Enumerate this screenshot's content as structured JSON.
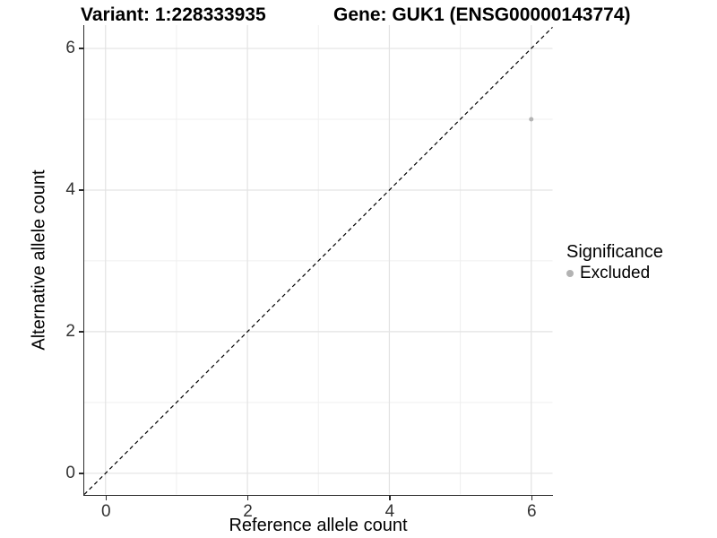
{
  "chart_data": {
    "type": "scatter",
    "title_left": "Variant: 1:228333935",
    "title_right": "Gene: GUK1 (ENSG00000143774)",
    "xlabel": "Reference allele count",
    "ylabel": "Alternative allele count",
    "xlim": [
      -0.3,
      6.3
    ],
    "ylim": [
      -0.3,
      6.33
    ],
    "x_ticks": [
      0,
      2,
      4,
      6
    ],
    "y_ticks": [
      0,
      2,
      4,
      6
    ],
    "x_minor_gridlines": [
      1,
      3,
      5
    ],
    "y_minor_gridlines": [
      1,
      3,
      5
    ],
    "grid": "major and minor gridlines on, white panel background",
    "reference_line": {
      "kind": "identity y=x",
      "linetype": "dashed",
      "color": "#000000"
    },
    "series": [
      {
        "name": "Excluded",
        "color": "#b3b3b3",
        "point_radius": 2.5,
        "points": [
          [
            6,
            5
          ]
        ]
      }
    ],
    "legend": {
      "title": "Significance",
      "position": "right",
      "items": [
        {
          "label": "Excluded",
          "color": "#b3b3b3"
        }
      ]
    },
    "colors": {
      "grid_major": "#e3e3e3",
      "grid_minor": "#efefef",
      "axis_line": "#2b2b2b",
      "tick_text": "#333333",
      "title_text": "#000000"
    }
  }
}
